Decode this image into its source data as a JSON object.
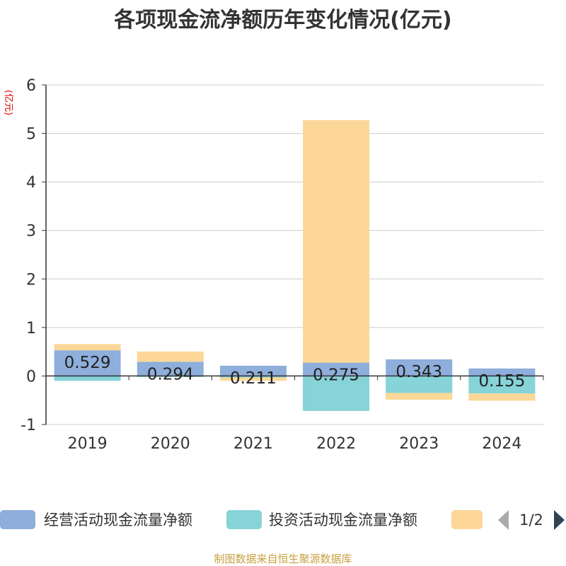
{
  "chart_data": {
    "type": "bar",
    "stacked": true,
    "title": "各项现金流净额历年变化情况(亿元)",
    "ylabel": "(亿元)",
    "xlabel": "",
    "categories": [
      "2019",
      "2020",
      "2021",
      "2022",
      "2023",
      "2024"
    ],
    "ylim": [
      -1,
      6
    ],
    "yticks": [
      -1,
      0,
      1,
      2,
      3,
      4,
      5,
      6
    ],
    "grid": true,
    "series": [
      {
        "name": "经营活动现金流量净额",
        "color": "#8eaedb",
        "values": [
          0.529,
          0.294,
          0.211,
          0.275,
          0.343,
          0.155
        ],
        "labels": [
          "0.529",
          "0.294",
          "0.211",
          "0.275",
          "0.343",
          "0.155"
        ]
      },
      {
        "name": "投资活动现金流量净额",
        "color": "#86d3d8",
        "values": [
          -0.1,
          -0.02,
          -0.03,
          -0.72,
          -0.35,
          -0.36
        ]
      },
      {
        "name": "",
        "color": "#fcd798",
        "values": [
          0.13,
          0.21,
          -0.07,
          5.0,
          -0.14,
          -0.15
        ]
      }
    ]
  },
  "legend": {
    "page": "1/2",
    "prev_icon": "triangle-left-icon",
    "next_icon": "triangle-right-icon"
  },
  "source": "制图数据来自恒生聚源数据库"
}
